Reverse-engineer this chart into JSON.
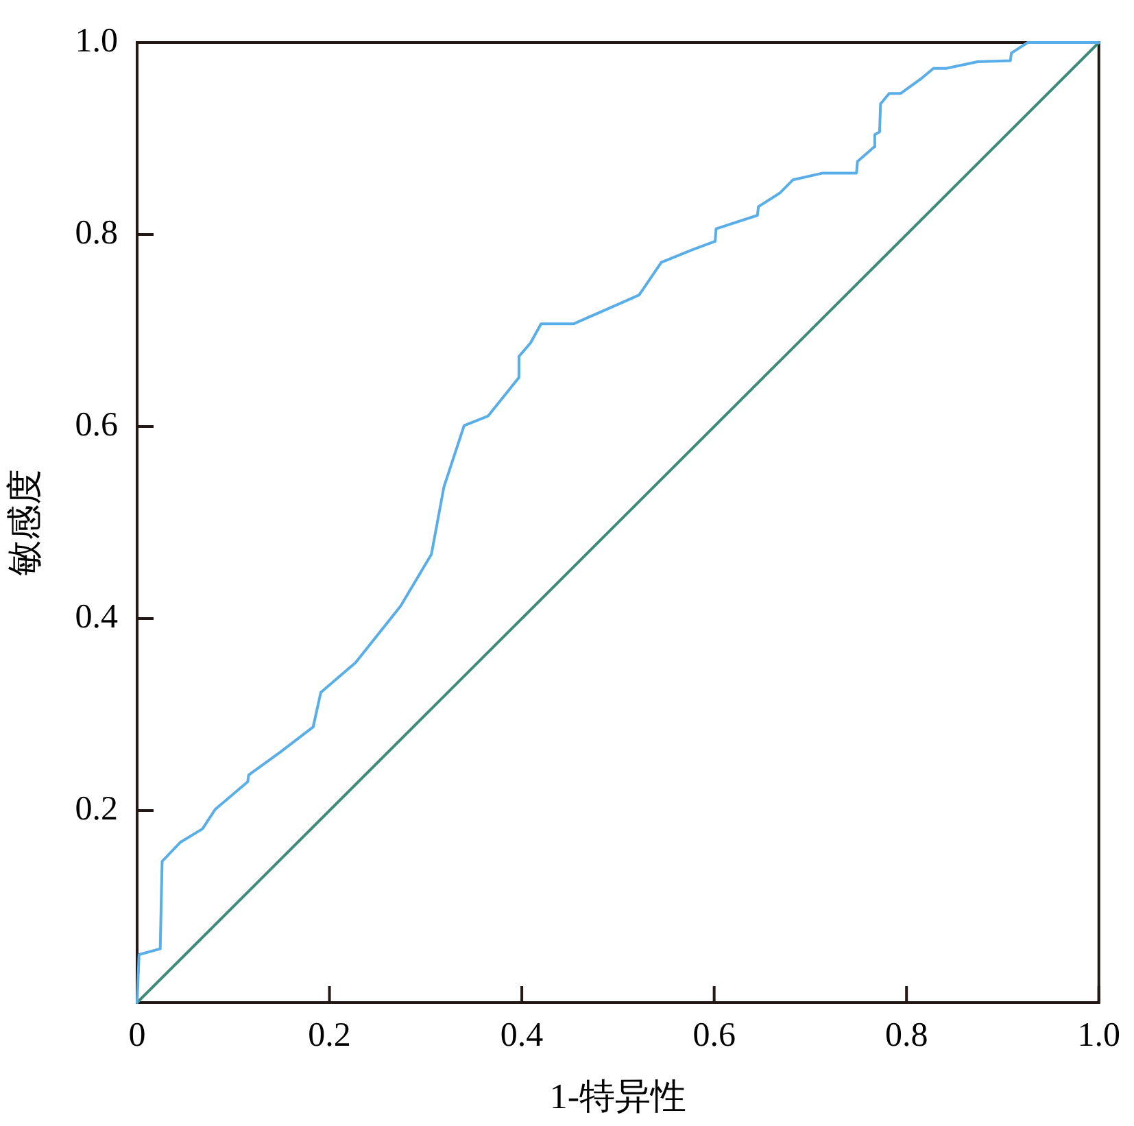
{
  "chart_data": {
    "type": "line",
    "xlabel": "1-特异性",
    "ylabel": "敏感度",
    "xlim": [
      0,
      1
    ],
    "ylim": [
      0,
      1
    ],
    "xticks": [
      0,
      0.2,
      0.4,
      0.6,
      0.8,
      {
        "value": 1,
        "label": "1.0"
      }
    ],
    "yticks": [
      0.2,
      0.4,
      0.6,
      0.8,
      {
        "value": 1,
        "label": "1.0"
      }
    ],
    "marker": "none",
    "line_style": "solid",
    "grid": false,
    "legend": false,
    "series": [
      {
        "color": "#5aaee8",
        "x": [
          0,
          0.002,
          0.024,
          0.026,
          0.045,
          0.068,
          0.081,
          0.115,
          0.116,
          0.149,
          0.183,
          0.191,
          0.227,
          0.274,
          0.306,
          0.319,
          0.34,
          0.365,
          0.397,
          0.397,
          0.409,
          0.42,
          0.454,
          0.504,
          0.522,
          0.545,
          0.577,
          0.601,
          0.602,
          0.645,
          0.646,
          0.668,
          0.682,
          0.713,
          0.748,
          0.749,
          0.766,
          0.767,
          0.772,
          0.773,
          0.782,
          0.794,
          0.816,
          0.828,
          0.841,
          0.874,
          0.908,
          0.909,
          0.926,
          1
        ],
        "values": [
          0,
          0.05,
          0.056,
          0.147,
          0.167,
          0.181,
          0.201,
          0.23,
          0.237,
          0.261,
          0.287,
          0.323,
          0.354,
          0.413,
          0.467,
          0.537,
          0.601,
          0.611,
          0.651,
          0.673,
          0.687,
          0.707,
          0.707,
          0.729,
          0.737,
          0.771,
          0.784,
          0.793,
          0.806,
          0.82,
          0.829,
          0.843,
          0.857,
          0.864,
          0.864,
          0.876,
          0.891,
          0.904,
          0.907,
          0.936,
          0.947,
          0.947,
          0.963,
          0.973,
          0.973,
          0.98,
          0.981,
          0.989,
          1,
          1
        ]
      },
      {
        "color": "#3f8a7a",
        "x": [
          0,
          1
        ],
        "values": [
          0,
          1
        ]
      }
    ]
  }
}
